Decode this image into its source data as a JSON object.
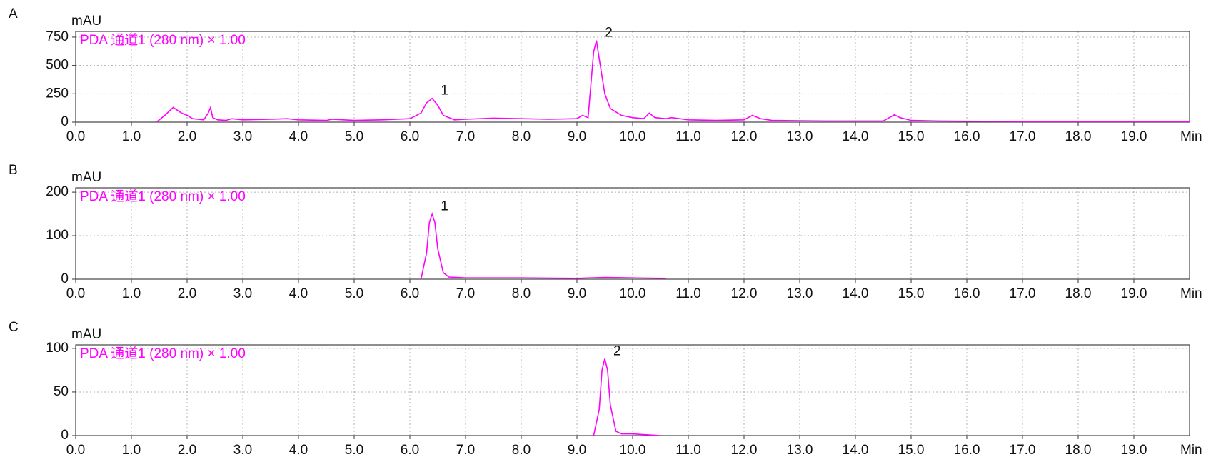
{
  "chart_data": [
    {
      "type": "line",
      "panel_label": "A",
      "y_label": "mAU",
      "x_label": "Min",
      "x": [
        1.45,
        1.6,
        1.75,
        1.9,
        2.0,
        2.1,
        2.3,
        2.38,
        2.42,
        2.46,
        2.55,
        2.7,
        2.8,
        3.0,
        3.5,
        3.8,
        4.0,
        4.5,
        4.6,
        5.0,
        5.5,
        6.0,
        6.2,
        6.3,
        6.4,
        6.5,
        6.6,
        6.8,
        7.0,
        7.5,
        8.0,
        8.5,
        9.0,
        9.1,
        9.2,
        9.3,
        9.35,
        9.4,
        9.5,
        9.6,
        9.8,
        10.0,
        10.2,
        10.3,
        10.4,
        10.6,
        10.7,
        11.0,
        11.5,
        12.0,
        12.15,
        12.3,
        12.5,
        13.0,
        13.5,
        14.0,
        14.5,
        14.7,
        14.8,
        15.0,
        15.5,
        16.0,
        17.0,
        18.0,
        19.0,
        20.0
      ],
      "series": [
        {
          "name": "PDA 通道1 (280 nm) × 1.00",
          "color": "#ff00ff",
          "values": [
            0,
            60,
            130,
            80,
            60,
            30,
            20,
            80,
            130,
            40,
            20,
            15,
            30,
            20,
            25,
            30,
            20,
            15,
            25,
            15,
            20,
            30,
            80,
            170,
            210,
            150,
            60,
            20,
            25,
            35,
            30,
            25,
            30,
            60,
            40,
            620,
            720,
            560,
            250,
            120,
            60,
            40,
            30,
            80,
            40,
            30,
            40,
            20,
            15,
            20,
            60,
            30,
            15,
            12,
            10,
            10,
            10,
            65,
            40,
            15,
            10,
            8,
            5,
            5,
            5,
            5
          ]
        }
      ],
      "annotations": [
        {
          "text": "1",
          "x": 6.4,
          "y": 210
        },
        {
          "text": "2",
          "x": 9.35,
          "y": 720
        }
      ],
      "xlim": [
        0,
        20
      ],
      "ylim": [
        0,
        800
      ],
      "yticks": [
        0,
        250,
        500,
        750
      ],
      "xticks": [
        {
          "value": 0,
          "label": "0.0"
        },
        {
          "value": 1,
          "label": "1.0"
        },
        {
          "value": 2,
          "label": "2.0"
        },
        {
          "value": 3,
          "label": "3.0"
        },
        {
          "value": 4,
          "label": "4.0"
        },
        {
          "value": 5,
          "label": "5.0"
        },
        {
          "value": 6,
          "label": "6.0"
        },
        {
          "value": 7,
          "label": "7.0"
        },
        {
          "value": 8,
          "label": "8.0"
        },
        {
          "value": 9,
          "label": "9.0"
        },
        {
          "value": 10,
          "label": "10.0"
        },
        {
          "value": 11,
          "label": "11.0"
        },
        {
          "value": 12,
          "label": "12.0"
        },
        {
          "value": 13,
          "label": "13.0"
        },
        {
          "value": 14,
          "label": "14.0"
        },
        {
          "value": 15,
          "label": "15.0"
        },
        {
          "value": 16,
          "label": "16.0"
        },
        {
          "value": 17,
          "label": "17.0"
        },
        {
          "value": 18,
          "label": "18.0"
        },
        {
          "value": 19,
          "label": "19.0"
        }
      ],
      "grid": true
    },
    {
      "type": "line",
      "panel_label": "B",
      "y_label": "mAU",
      "x_label": "Min",
      "x": [
        6.2,
        6.3,
        6.35,
        6.4,
        6.45,
        6.5,
        6.6,
        6.7,
        7.0,
        8.0,
        9.0,
        9.5,
        10.0,
        10.6
      ],
      "series": [
        {
          "name": "PDA 通道1 (280 nm) × 1.00",
          "color": "#ff00ff",
          "values": [
            0,
            60,
            130,
            150,
            130,
            70,
            15,
            5,
            3,
            3,
            2,
            4,
            3,
            2
          ]
        }
      ],
      "annotations": [
        {
          "text": "1",
          "x": 6.4,
          "y": 150
        }
      ],
      "xlim": [
        0,
        20
      ],
      "ylim": [
        0,
        210
      ],
      "yticks": [
        0,
        100,
        200
      ],
      "xticks": [
        {
          "value": 0,
          "label": "0.0"
        },
        {
          "value": 1,
          "label": "1.0"
        },
        {
          "value": 2,
          "label": "2.0"
        },
        {
          "value": 3,
          "label": "3.0"
        },
        {
          "value": 4,
          "label": "4.0"
        },
        {
          "value": 5,
          "label": "5.0"
        },
        {
          "value": 6,
          "label": "6.0"
        },
        {
          "value": 7,
          "label": "7.0"
        },
        {
          "value": 8,
          "label": "8.0"
        },
        {
          "value": 9,
          "label": "9.0"
        },
        {
          "value": 10,
          "label": "10.0"
        },
        {
          "value": 11,
          "label": "11.0"
        },
        {
          "value": 12,
          "label": "12.0"
        },
        {
          "value": 13,
          "label": "13.0"
        },
        {
          "value": 14,
          "label": "14.0"
        },
        {
          "value": 15,
          "label": "15.0"
        },
        {
          "value": 16,
          "label": "16.0"
        },
        {
          "value": 17,
          "label": "17.0"
        },
        {
          "value": 18,
          "label": "18.0"
        },
        {
          "value": 19,
          "label": "19.0"
        }
      ],
      "grid": true
    },
    {
      "type": "line",
      "panel_label": "C",
      "y_label": "mAU",
      "x_label": "Min",
      "x": [
        9.3,
        9.4,
        9.45,
        9.5,
        9.55,
        9.6,
        9.7,
        9.8,
        10.0,
        10.5
      ],
      "series": [
        {
          "name": "PDA 通道1 (280 nm) × 1.00",
          "color": "#ff00ff",
          "values": [
            0,
            30,
            75,
            88,
            75,
            35,
            5,
            2,
            2,
            0
          ]
        }
      ],
      "annotations": [
        {
          "text": "2",
          "x": 9.5,
          "y": 88
        }
      ],
      "xlim": [
        0,
        20
      ],
      "ylim": [
        0,
        104
      ],
      "yticks": [
        0,
        50,
        100
      ],
      "xticks": [
        {
          "value": 0,
          "label": "0.0"
        },
        {
          "value": 1,
          "label": "1.0"
        },
        {
          "value": 2,
          "label": "2.0"
        },
        {
          "value": 3,
          "label": "3.0"
        },
        {
          "value": 4,
          "label": "4.0"
        },
        {
          "value": 5,
          "label": "5.0"
        },
        {
          "value": 6,
          "label": "6.0"
        },
        {
          "value": 7,
          "label": "7.0"
        },
        {
          "value": 8,
          "label": "8.0"
        },
        {
          "value": 9,
          "label": "9.0"
        },
        {
          "value": 10,
          "label": "10.0"
        },
        {
          "value": 11,
          "label": "11.0"
        },
        {
          "value": 12,
          "label": "12.0"
        },
        {
          "value": 13,
          "label": "13.0"
        },
        {
          "value": 14,
          "label": "14.0"
        },
        {
          "value": 15,
          "label": "15.0"
        },
        {
          "value": 16,
          "label": "16.0"
        },
        {
          "value": 17,
          "label": "17.0"
        },
        {
          "value": 18,
          "label": "18.0"
        },
        {
          "value": 19,
          "label": "19.0"
        }
      ],
      "grid": true
    }
  ]
}
